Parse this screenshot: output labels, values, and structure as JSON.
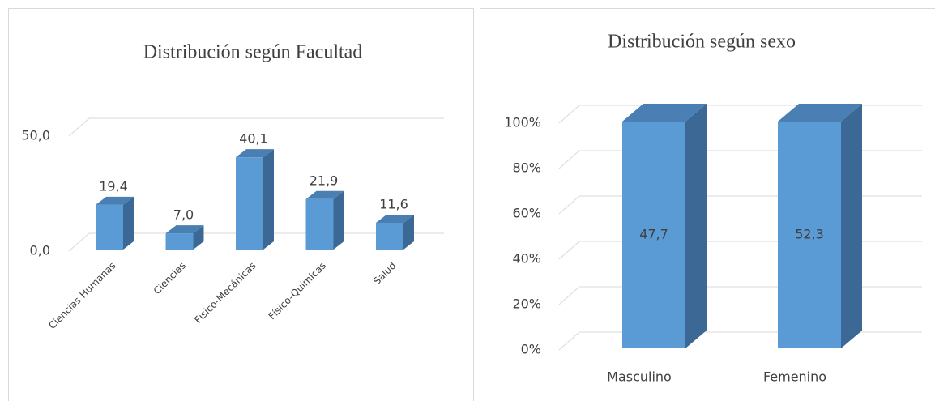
{
  "chart_data": [
    {
      "type": "bar3d",
      "title": "Distribución según Facultad",
      "categories": [
        "Ciencias Humanas",
        "Ciencias",
        "Físico-Mecánicas",
        "Físico-Químicas",
        "Salud"
      ],
      "values": [
        19.4,
        7.0,
        40.1,
        21.9,
        11.6
      ],
      "value_labels": [
        "19,4",
        "7,0",
        "40,1",
        "21,9",
        "11,6"
      ],
      "color": "#5b9bd5",
      "ylim": [
        0,
        50
      ],
      "yticks": [
        {
          "value": 0,
          "label": "0,0"
        },
        {
          "value": 50,
          "label": "50,0"
        }
      ],
      "grid": true
    },
    {
      "type": "bar3d_percent",
      "title": "Distribución según sexo",
      "categories": [
        "Masculino",
        "Femenino"
      ],
      "values": [
        47.7,
        52.3
      ],
      "value_labels": [
        "47,7",
        "52,3"
      ],
      "color": "#5b9bd5",
      "ylim": [
        0,
        100
      ],
      "yticks": [
        {
          "value": 0,
          "label": "0%"
        },
        {
          "value": 20,
          "label": "20%"
        },
        {
          "value": 40,
          "label": "40%"
        },
        {
          "value": 60,
          "label": "60%"
        },
        {
          "value": 80,
          "label": "80%"
        },
        {
          "value": 100,
          "label": "100%"
        }
      ],
      "grid": true
    }
  ]
}
